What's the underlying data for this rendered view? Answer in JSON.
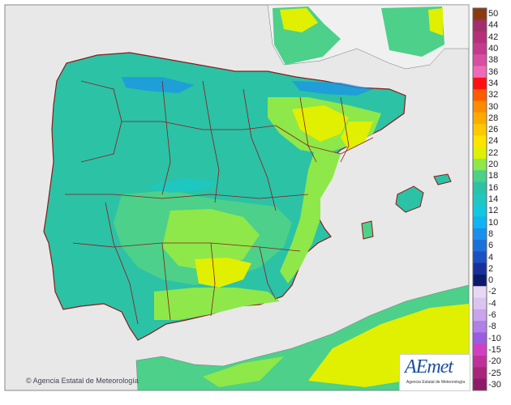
{
  "credit": {
    "symbol": "©",
    "text": "Agencia Estatal de Meteorología"
  },
  "logo": {
    "mark": "AEmet",
    "subtitle": "Agencia Estatal de Meteorología"
  },
  "legend": {
    "bins": [
      {
        "label": "50",
        "color": "#8b3a10"
      },
      {
        "label": "44",
        "color": "#a0306a"
      },
      {
        "label": "42",
        "color": "#b4307a"
      },
      {
        "label": "40",
        "color": "#c43a8c"
      },
      {
        "label": "38",
        "color": "#d84ea0"
      },
      {
        "label": "36",
        "color": "#ee6ab8"
      },
      {
        "label": "34",
        "color": "#ff1010"
      },
      {
        "label": "32",
        "color": "#ff5a00"
      },
      {
        "label": "30",
        "color": "#ff8c00"
      },
      {
        "label": "28",
        "color": "#ffaa00"
      },
      {
        "label": "26",
        "color": "#ffc800"
      },
      {
        "label": "24",
        "color": "#ffe400"
      },
      {
        "label": "22",
        "color": "#e0f000"
      },
      {
        "label": "20",
        "color": "#8ee84a"
      },
      {
        "label": "18",
        "color": "#4cd08a"
      },
      {
        "label": "16",
        "color": "#2cc2a6"
      },
      {
        "label": "14",
        "color": "#1ec8c0"
      },
      {
        "label": "12",
        "color": "#12c8e0"
      },
      {
        "label": "10",
        "color": "#10b4f0"
      },
      {
        "label": "8",
        "color": "#1a90ee"
      },
      {
        "label": "6",
        "color": "#1c70dc"
      },
      {
        "label": "4",
        "color": "#1a50c0"
      },
      {
        "label": "2",
        "color": "#18309a"
      },
      {
        "label": "0",
        "color": "#0c1a6c"
      },
      {
        "label": "-2",
        "color": "#e8d8f4"
      },
      {
        "label": "-4",
        "color": "#dcc4f0"
      },
      {
        "label": "-6",
        "color": "#c8a4ec"
      },
      {
        "label": "-8",
        "color": "#b080e6"
      },
      {
        "label": "-10",
        "color": "#9a5ce0"
      },
      {
        "label": "-15",
        "color": "#d040c0"
      },
      {
        "label": "-20",
        "color": "#c0309a"
      },
      {
        "label": "-25",
        "color": "#a8247a"
      },
      {
        "label": "-30",
        "color": "#8c1a66"
      }
    ]
  },
  "colors": {
    "sea": "#e8e8e8",
    "land_outside": "#f0f0f0",
    "border": "#8a1a1a",
    "temp_cool": "#2cc2a6",
    "temp_mid": "#4cd08a",
    "temp_warm": "#8ee84a",
    "temp_hot": "#e0f000",
    "temp_cold": "#1ec8c0",
    "temp_very_cold": "#1a90ee"
  }
}
